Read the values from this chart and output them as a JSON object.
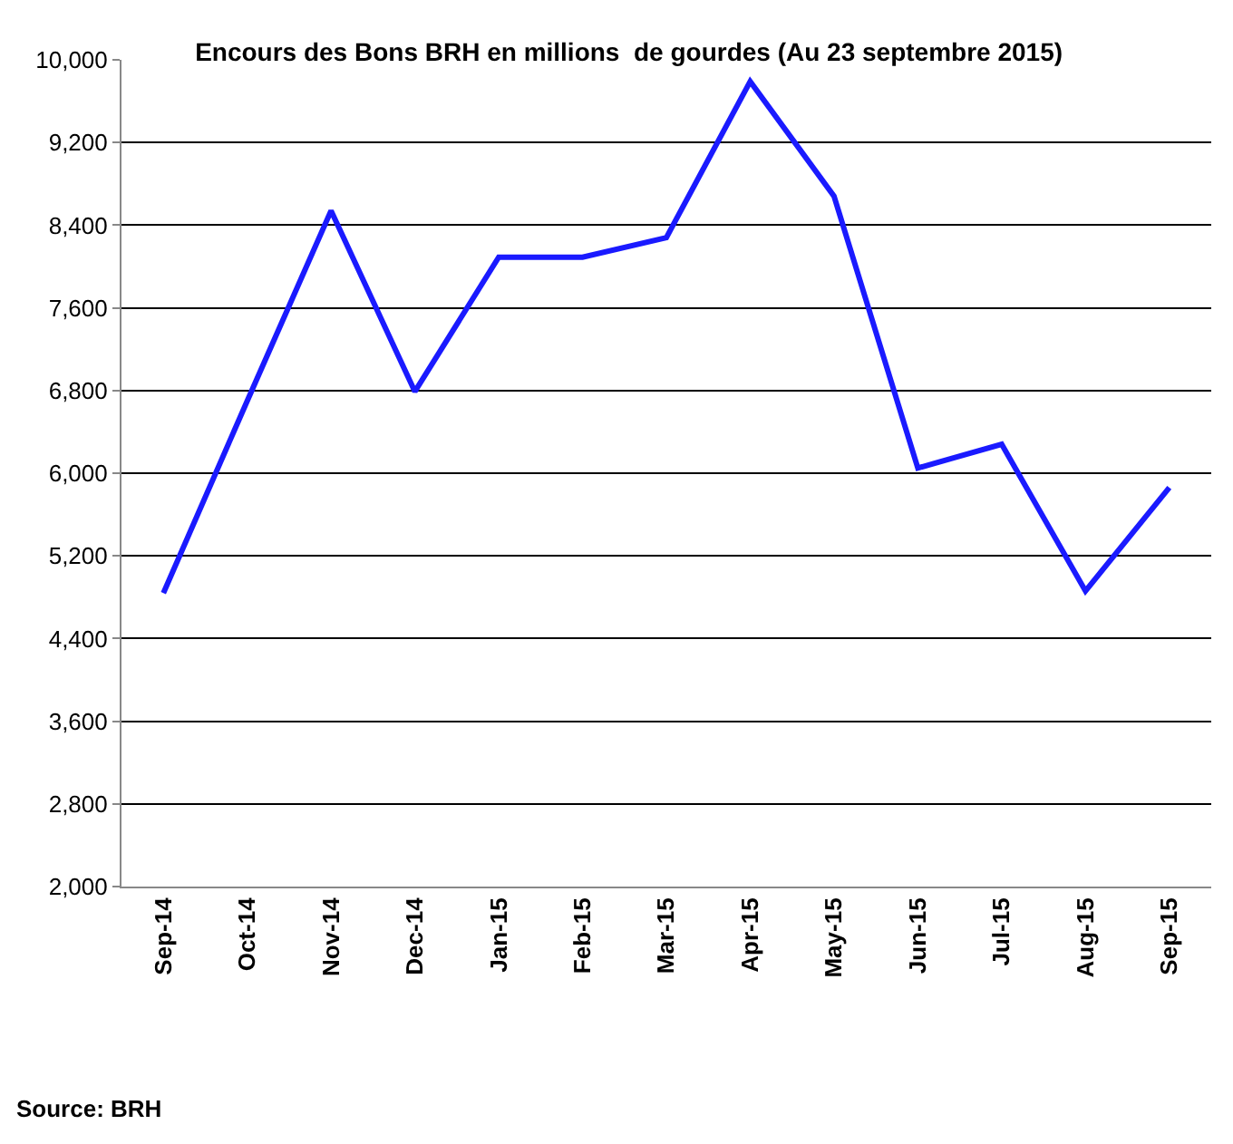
{
  "chart_data": {
    "type": "line",
    "title": "Encours des Bons BRH en millions  de gourdes (Au 23 septembre 2015)",
    "categories": [
      "Sep-14",
      "Oct-14",
      "Nov-14",
      "Dec-14",
      "Jan-15",
      "Feb-15",
      "Mar-15",
      "Apr-15",
      "May-15",
      "Jun-15",
      "Jul-15",
      "Aug-15",
      "Sep-15"
    ],
    "series": [
      {
        "color": "#1a1aff",
        "values": [
          4840,
          6700,
          8540,
          6790,
          8090,
          8090,
          8280,
          9790,
          8680,
          6050,
          6280,
          4860,
          5860
        ]
      }
    ],
    "ylim": [
      2000,
      10000
    ],
    "yticks": [
      {
        "value": 2000,
        "label": "2,000"
      },
      {
        "value": 2800,
        "label": "2,800"
      },
      {
        "value": 3600,
        "label": "3,600"
      },
      {
        "value": 4400,
        "label": "4,400"
      },
      {
        "value": 5200,
        "label": "5,200"
      },
      {
        "value": 6000,
        "label": "6,000"
      },
      {
        "value": 6800,
        "label": "6,800"
      },
      {
        "value": 7600,
        "label": "7,600"
      },
      {
        "value": 8400,
        "label": "8,400"
      },
      {
        "value": 9200,
        "label": "9,200"
      },
      {
        "value": 10000,
        "label": "10,000"
      }
    ],
    "grid": "y",
    "marker": "none",
    "line_style": "solid",
    "annotations": [
      "Source: BRH"
    ]
  }
}
